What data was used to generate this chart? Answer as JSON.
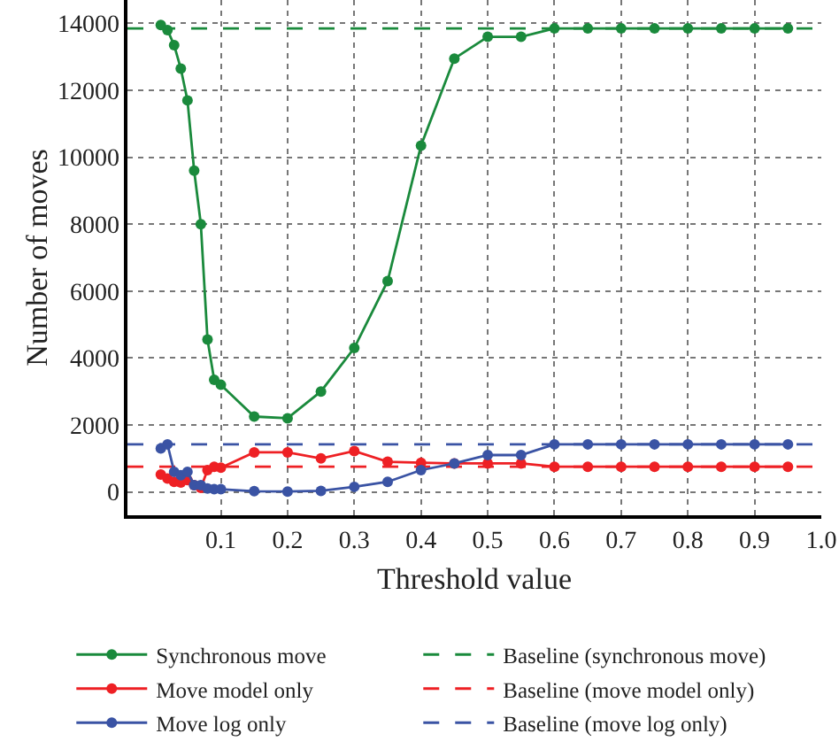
{
  "chart_data": {
    "type": "line",
    "xlabel": "Threshold value",
    "ylabel": "Number of moves",
    "x": [
      0.01,
      0.02,
      0.03,
      0.04,
      0.05,
      0.06,
      0.07,
      0.08,
      0.09,
      0.1,
      0.15,
      0.2,
      0.25,
      0.3,
      0.35,
      0.4,
      0.45,
      0.5,
      0.55,
      0.6,
      0.65,
      0.7,
      0.75,
      0.8,
      0.85,
      0.9,
      0.95
    ],
    "series": [
      {
        "name": "Synchronous move",
        "color": "#1a8a3c",
        "values": [
          13950,
          13800,
          13350,
          12650,
          11700,
          9600,
          8000,
          4550,
          3350,
          3200,
          2250,
          2200,
          3000,
          4300,
          6300,
          10350,
          12950,
          13600,
          13600,
          13850,
          13850,
          13850,
          13850,
          13850,
          13850,
          13850,
          13850
        ]
      },
      {
        "name": "Move model only",
        "color": "#ee2024",
        "values": [
          520,
          400,
          300,
          280,
          350,
          200,
          120,
          650,
          750,
          720,
          1180,
          1180,
          1000,
          1220,
          900,
          870,
          850,
          850,
          850,
          750,
          750,
          750,
          750,
          750,
          750,
          750,
          750
        ]
      },
      {
        "name": "Move log only",
        "color": "#3a53a4",
        "values": [
          1300,
          1420,
          600,
          500,
          600,
          200,
          200,
          100,
          80,
          80,
          20,
          10,
          30,
          150,
          300,
          650,
          850,
          1100,
          1100,
          1420,
          1420,
          1420,
          1420,
          1420,
          1420,
          1420,
          1420
        ]
      }
    ],
    "ref_lines": [
      {
        "axis": "y",
        "value": 13850,
        "label": "Baseline (synchronous move)",
        "color": "#1a8a3c",
        "line_style": "dashed"
      },
      {
        "axis": "y",
        "value": 750,
        "label": "Baseline (move model only)",
        "color": "#ee2024",
        "line_style": "dashed"
      },
      {
        "axis": "y",
        "value": 1420,
        "label": "Baseline (move log only)",
        "color": "#3a53a4",
        "line_style": "dashed"
      }
    ],
    "xlim": [
      -0.04,
      1.0
    ],
    "xticks": [
      0.1,
      0.2,
      0.3,
      0.4,
      0.5,
      0.6,
      0.7,
      0.8,
      0.9,
      {
        "value": 1,
        "label": "1.0"
      }
    ],
    "ylim": [
      -700,
      14700
    ],
    "yticks": [
      0,
      2000,
      4000,
      6000,
      8000,
      10000,
      12000,
      14000
    ],
    "grid": true,
    "legend": "bottom",
    "marker": "circle",
    "line_style": "solid"
  }
}
